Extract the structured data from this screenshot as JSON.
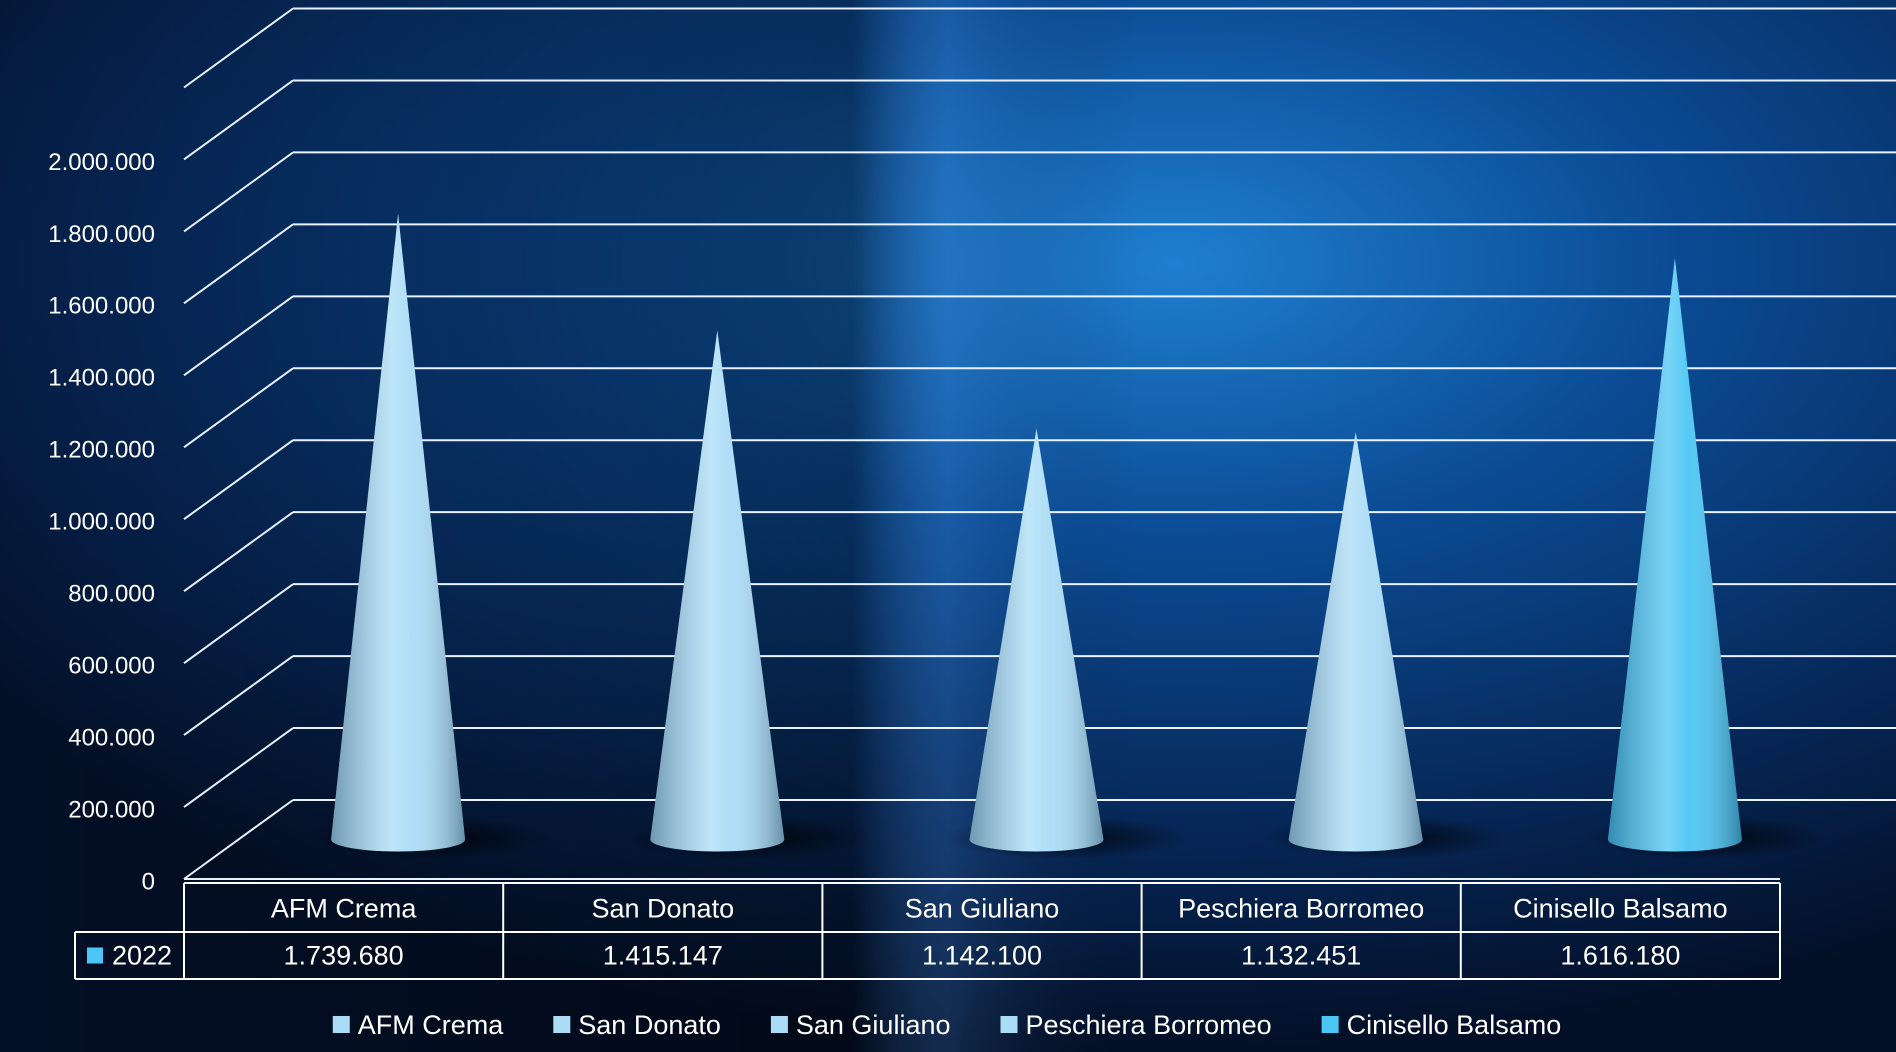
{
  "chart_data": {
    "type": "cone",
    "categories": [
      "AFM Crema",
      "San Donato",
      "San Giuliano",
      "Peschiera Borromeo",
      "Cinisello Balsamo"
    ],
    "colors": [
      "#aadcf6",
      "#aadcf6",
      "#aadcf6",
      "#aadcf6",
      "#4cc6f4"
    ],
    "series": [
      {
        "name": "2022",
        "color": "#4cc6f4",
        "values": [
          1739680,
          1415147,
          1142100,
          1132451,
          1616180
        ],
        "value_labels": [
          "1.739.680",
          "1.415.147",
          "1.142.100",
          "1.132.451",
          "1.616.180"
        ]
      }
    ],
    "ylim": [
      0,
      2200000
    ],
    "yticks": [
      0,
      {
        "value": 200000,
        "label": "200.000"
      },
      {
        "value": 400000,
        "label": "400.000"
      },
      {
        "value": 600000,
        "label": "600.000"
      },
      {
        "value": 800000,
        "label": "800.000"
      },
      {
        "value": 1000000,
        "label": "1.000.000"
      },
      {
        "value": 1200000,
        "label": "1.200.000"
      },
      {
        "value": 1400000,
        "label": "1.400.000"
      },
      {
        "value": 1600000,
        "label": "1.600.000"
      },
      {
        "value": 1800000,
        "label": "1.800.000"
      },
      {
        "value": 2000000,
        "label": "2.000.000"
      }
    ],
    "grid": true,
    "legend": "bottom"
  }
}
